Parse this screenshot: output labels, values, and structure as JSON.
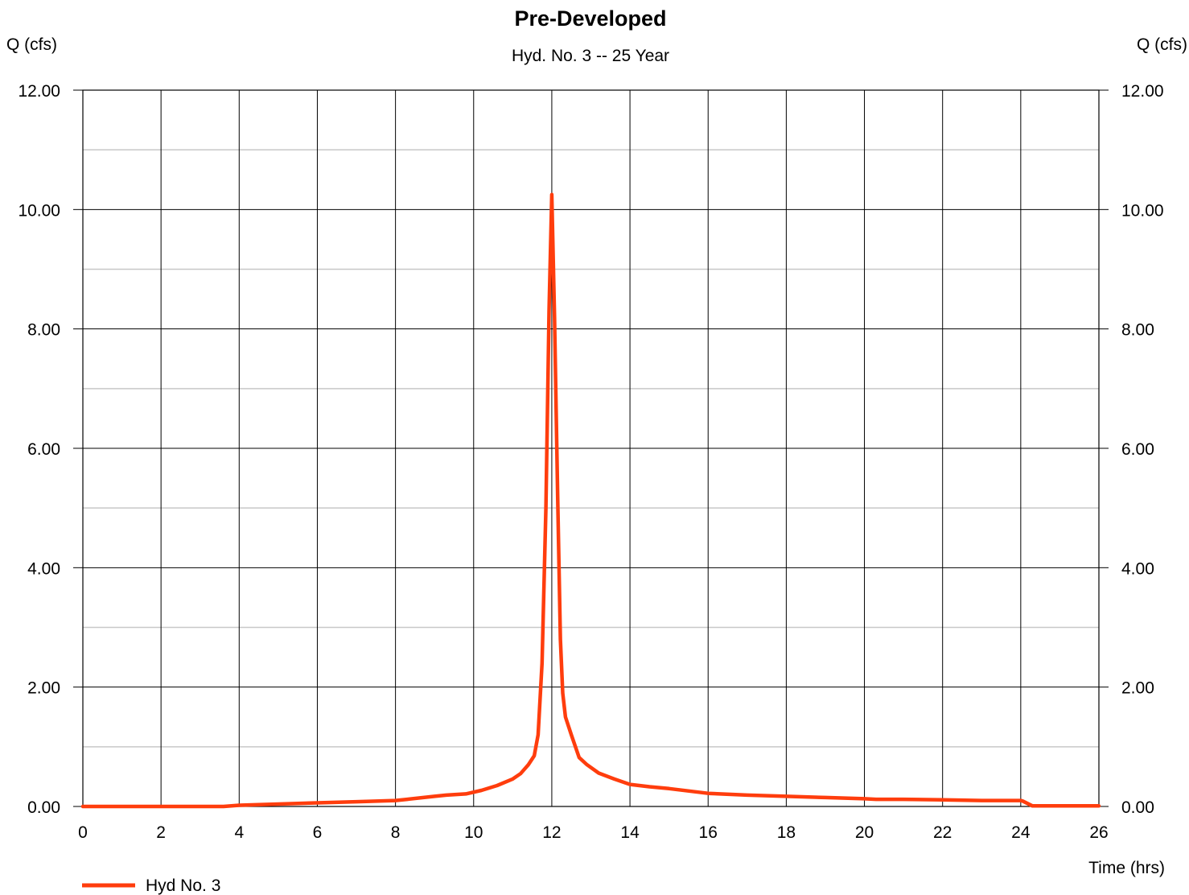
{
  "chart_data": {
    "type": "line",
    "title": "Pre-Developed",
    "subtitle": "Hyd. No. 3 -- 25 Year",
    "ylabel_left": "Q (cfs)",
    "ylabel_right": "Q (cfs)",
    "xlabel": "Time (hrs)",
    "xlim": [
      0,
      26
    ],
    "ylim": [
      0,
      12
    ],
    "x_ticks": [
      "0",
      "2",
      "4",
      "6",
      "8",
      "10",
      "12",
      "14",
      "16",
      "18",
      "20",
      "22",
      "24",
      "26"
    ],
    "y_ticks": [
      "0.00",
      "2.00",
      "4.00",
      "6.00",
      "8.00",
      "10.00",
      "12.00"
    ],
    "x_tick_values": [
      0,
      2,
      4,
      6,
      8,
      10,
      12,
      14,
      16,
      18,
      20,
      22,
      24,
      26
    ],
    "y_tick_values": [
      0,
      2,
      4,
      6,
      8,
      10,
      12
    ],
    "y_minor_values": [
      1,
      3,
      5,
      7,
      9,
      11
    ],
    "grid": true,
    "legend_position": "bottom-left",
    "series": [
      {
        "name": "Hyd No. 3",
        "color": "#ff3d0d",
        "x": [
          0,
          3.6,
          4,
          5,
          6,
          7,
          8,
          8.3,
          9,
          9.3,
          9.8,
          10.2,
          10.6,
          11,
          11.2,
          11.4,
          11.55,
          11.65,
          11.75,
          11.85,
          11.93,
          12.0,
          12.07,
          12.15,
          12.22,
          12.28,
          12.35,
          12.5,
          12.7,
          12.9,
          13.2,
          13.6,
          14,
          14.5,
          15,
          16,
          17,
          18,
          19,
          20,
          20.3,
          21,
          22,
          23,
          24,
          24.05,
          24.3,
          26
        ],
        "y": [
          0,
          0,
          0.02,
          0.04,
          0.06,
          0.08,
          0.1,
          0.12,
          0.17,
          0.19,
          0.21,
          0.27,
          0.35,
          0.46,
          0.55,
          0.7,
          0.85,
          1.2,
          2.4,
          5.0,
          8.3,
          10.25,
          8.2,
          5.2,
          2.8,
          1.9,
          1.5,
          1.2,
          0.82,
          0.7,
          0.56,
          0.46,
          0.37,
          0.33,
          0.3,
          0.22,
          0.19,
          0.17,
          0.15,
          0.13,
          0.12,
          0.12,
          0.11,
          0.1,
          0.1,
          0.09,
          0.01,
          0.01
        ]
      }
    ]
  }
}
